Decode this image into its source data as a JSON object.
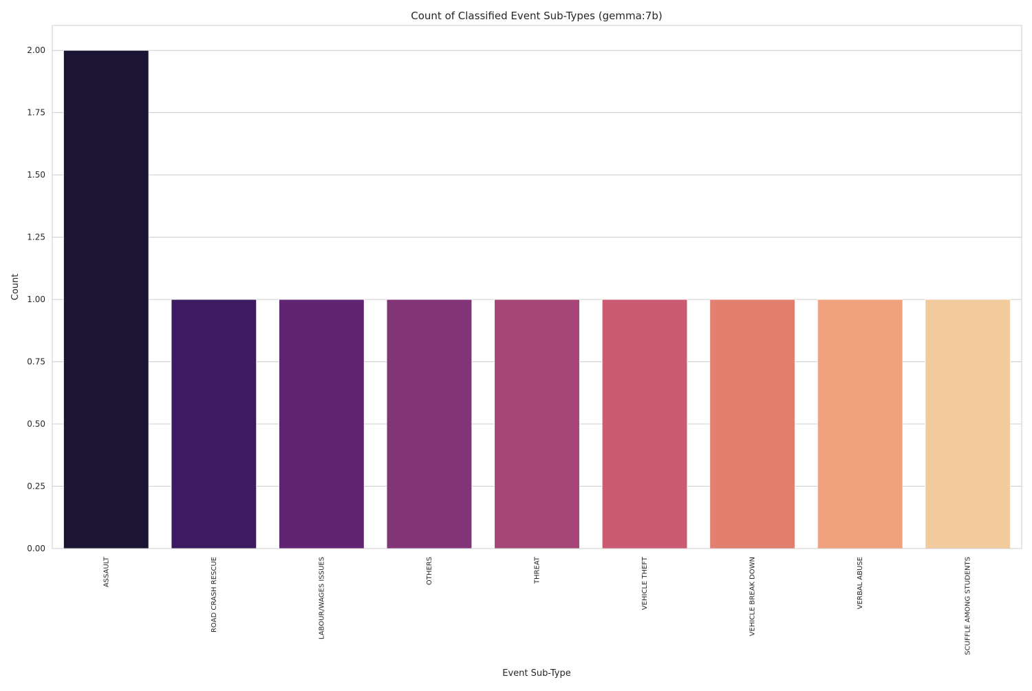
{
  "chart_data": {
    "type": "bar",
    "title": "Count of Classified Event Sub-Types (gemma:7b)",
    "xlabel": "Event Sub-Type",
    "ylabel": "Count",
    "categories": [
      "ASSAULT",
      "ROAD CRASH RESCUE",
      "LABOUR/WAGES ISSUES",
      "OTHERS",
      "THREAT",
      "VEHICLE THEFT",
      "VEHICLE BREAK DOWN",
      "VERBAL ABUSE",
      "SCUFFLE AMONG STUDENTS"
    ],
    "values": [
      2,
      1,
      1,
      1,
      1,
      1,
      1,
      1,
      1
    ],
    "colors": [
      "#1b1533",
      "#3e1a63",
      "#5f2570",
      "#813576",
      "#a54677",
      "#cb5b72",
      "#e37f6e",
      "#eea37e",
      "#f1cb9c"
    ],
    "ylim": [
      0,
      2.1
    ],
    "yticks": [
      "0.00",
      "0.25",
      "0.50",
      "0.75",
      "1.00",
      "1.25",
      "1.50",
      "1.75",
      "2.00"
    ],
    "grid": true,
    "legend": "none"
  }
}
